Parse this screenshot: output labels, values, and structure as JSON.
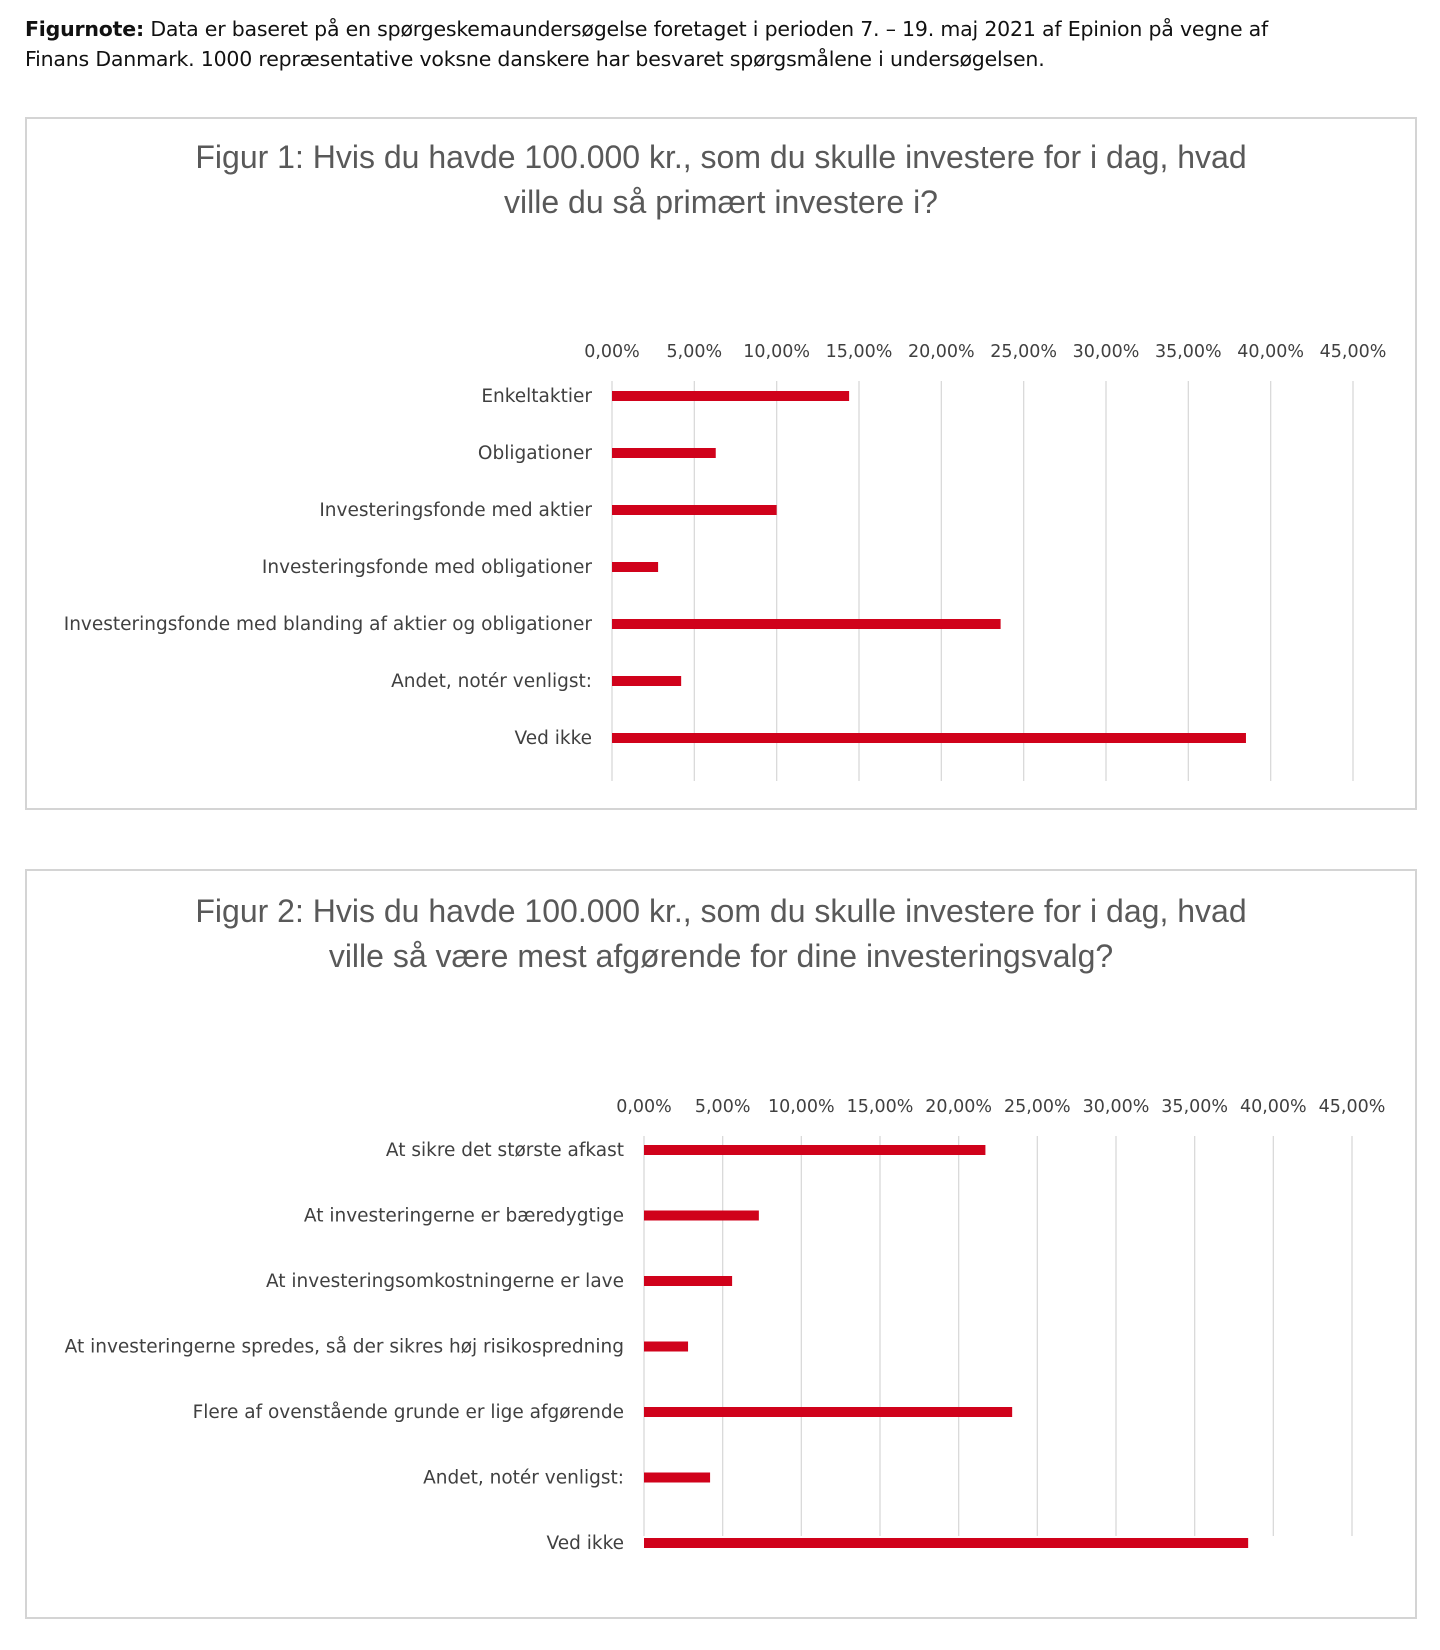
{
  "note": {
    "label": "Figurnote:",
    "text": " Data er baseret på en spørgeskemaundersøgelse foretaget i perioden 7. – 19. maj 2021 af Epinion på vegne af Finans Danmark. 1000 repræsentative voksne danskere har besvaret spørgsmålene i undersøgelsen."
  },
  "colors": {
    "bar": "#d0021b",
    "grid": "#d9d9d9",
    "title": "#595959",
    "border": "#d4d4d4"
  },
  "chart_data": [
    {
      "type": "bar",
      "orientation": "horizontal",
      "title": "Figur 1: Hvis du havde 100.000 kr., som du skulle investere for i dag, hvad ville du så primært investere i?",
      "title_lines": [
        "Figur 1: Hvis du havde 100.000 kr., som du skulle investere for i dag, hvad",
        "ville du så primært investere i?"
      ],
      "categories": [
        "Enkeltaktier",
        "Obligationer",
        "Investeringsfonde med aktier",
        "Investeringsfonde med obligationer",
        "Investeringsfonde med blanding af aktier og obligationer",
        "Andet, notér venligst:",
        "Ved ikke"
      ],
      "values": [
        14.4,
        6.3,
        10.0,
        2.8,
        23.6,
        4.2,
        38.5
      ],
      "xlim": [
        0,
        45
      ],
      "ticks": [
        "0,00%",
        "5,00%",
        "10,00%",
        "15,00%",
        "20,00%",
        "25,00%",
        "30,00%",
        "35,00%",
        "40,00%",
        "45,00%"
      ],
      "axis_position": "top",
      "grid": true,
      "legend": "none"
    },
    {
      "type": "bar",
      "orientation": "horizontal",
      "title": "Figur 2: Hvis du havde 100.000 kr., som du skulle investere for i dag, hvad ville så være mest afgørende for dine investeringsvalg?",
      "title_lines": [
        "Figur 2: Hvis du havde 100.000 kr., som du skulle investere for i dag, hvad",
        "ville så være mest afgørende for dine investeringsvalg?"
      ],
      "categories": [
        "At sikre det største afkast",
        "At investeringerne er bæredygtige",
        "At investeringsomkostningerne er lave",
        "At investeringerne spredes, så der sikres høj risikospredning",
        "Flere af ovenstående grunde er lige afgørende",
        "Andet, notér venligst:",
        "Ved ikke"
      ],
      "values": [
        21.7,
        7.3,
        5.6,
        2.8,
        23.4,
        4.2,
        38.4
      ],
      "xlim": [
        0,
        45
      ],
      "ticks": [
        "0,00%",
        "5,00%",
        "10,00%",
        "15,00%",
        "20,00%",
        "25,00%",
        "30,00%",
        "35,00%",
        "40,00%",
        "45,00%"
      ],
      "axis_position": "top",
      "grid": true,
      "legend": "none"
    }
  ]
}
